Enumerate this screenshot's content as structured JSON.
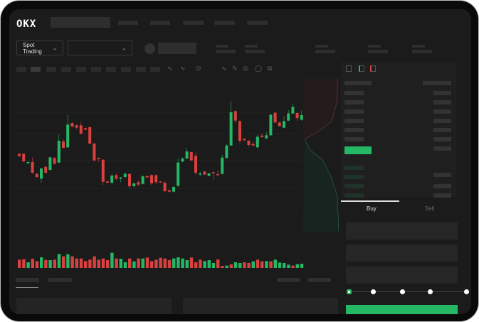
{
  "header": {
    "logo": "OKX"
  },
  "controls": {
    "market_type": "Spot Trading",
    "pair_select": ""
  },
  "order_form": {
    "tabs": [
      {
        "label": "Buy",
        "active": true
      },
      {
        "label": "Sell",
        "active": false
      }
    ],
    "leverage_slider": {
      "value_percent": 0,
      "stops": 5
    }
  },
  "colors": {
    "up": "#24b865",
    "down": "#d9413f",
    "background": "#1b1b1b"
  },
  "chart_data": {
    "type": "candlestick",
    "candles_ohlc": [
      [
        200,
        204,
        186,
        190
      ],
      [
        200,
        203,
        164,
        168
      ],
      [
        160,
        167,
        158,
        165
      ],
      [
        165,
        185,
        116,
        120
      ],
      [
        115,
        120,
        96,
        102
      ],
      [
        95,
        140,
        78,
        138
      ],
      [
        145,
        148,
        115,
        120
      ],
      [
        132,
        188,
        128,
        185
      ],
      [
        182,
        186,
        154,
        158
      ],
      [
        163,
        282,
        160,
        255
      ],
      [
        252,
        262,
        222,
        225
      ],
      [
        227,
        365,
        225,
        323
      ],
      [
        330,
        333,
        312,
        315
      ],
      [
        320,
        325,
        305,
        310
      ],
      [
        320,
        335,
        280,
        285
      ],
      [
        308,
        310,
        300,
        302
      ],
      [
        312,
        318,
        240,
        243
      ],
      [
        243,
        246,
        168,
        172
      ],
      [
        182,
        185,
        165,
        177
      ],
      [
        175,
        178,
        68,
        82
      ],
      [
        83,
        88,
        76,
        78
      ],
      [
        78,
        115,
        70,
        108
      ],
      [
        110,
        118,
        88,
        95
      ],
      [
        95,
        102,
        80,
        100
      ],
      [
        102,
        122,
        98,
        115
      ],
      [
        115,
        118,
        52,
        63
      ],
      [
        63,
        78,
        58,
        75
      ],
      [
        80,
        88,
        62,
        70
      ],
      [
        73,
        110,
        70,
        105
      ],
      [
        106,
        108,
        98,
        100
      ],
      [
        110,
        114,
        68,
        75
      ],
      [
        110,
        113,
        72,
        80
      ],
      [
        83,
        85,
        78,
        80
      ],
      [
        78,
        85,
        38,
        42
      ],
      [
        46,
        50,
        38,
        40
      ],
      [
        40,
        64,
        36,
        60
      ],
      [
        65,
        180,
        60,
        163
      ],
      [
        167,
        185,
        165,
        180
      ],
      [
        180,
        225,
        178,
        210
      ],
      [
        207,
        210,
        168,
        172
      ],
      [
        192,
        205,
        112,
        120
      ],
      [
        113,
        125,
        105,
        117
      ],
      [
        125,
        127,
        110,
        112
      ],
      [
        107,
        120,
        105,
        117
      ],
      [
        122,
        124,
        90,
        120
      ],
      [
        114,
        130,
        108,
        110
      ],
      [
        115,
        195,
        112,
        184
      ],
      [
        182,
        242,
        180,
        235
      ],
      [
        235,
        422,
        232,
        375
      ],
      [
        380,
        385,
        330,
        340
      ],
      [
        338,
        340,
        245,
        255
      ],
      [
        263,
        266,
        254,
        257
      ],
      [
        255,
        258,
        230,
        237
      ],
      [
        242,
        250,
        232,
        235
      ],
      [
        227,
        280,
        225,
        272
      ],
      [
        277,
        288,
        268,
        270
      ],
      [
        265,
        292,
        262,
        278
      ],
      [
        278,
        368,
        276,
        365
      ],
      [
        373,
        376,
        328,
        332
      ],
      [
        332,
        335,
        315,
        317
      ],
      [
        310,
        358,
        308,
        338
      ],
      [
        340,
        385,
        338,
        370
      ],
      [
        370,
        412,
        368,
        398
      ],
      [
        372,
        375,
        338,
        350
      ],
      [
        343,
        383,
        340,
        363
      ]
    ],
    "volume": [
      35,
      37,
      24,
      39,
      29,
      45,
      34,
      33,
      35,
      59,
      49,
      58,
      49,
      40,
      40,
      29,
      35,
      49,
      35,
      40,
      33,
      64,
      40,
      39,
      24,
      40,
      28,
      40,
      40,
      44,
      29,
      35,
      43,
      40,
      33,
      40,
      45,
      40,
      33,
      44,
      24,
      35,
      29,
      33,
      21,
      36,
      9,
      10,
      15,
      24,
      21,
      24,
      21,
      28,
      35,
      28,
      29,
      28,
      35,
      23,
      21,
      14,
      10,
      16,
      18
    ],
    "volume_up": [
      0,
      0,
      1,
      0,
      0,
      1,
      0,
      1,
      0,
      1,
      0,
      1,
      0,
      0,
      0,
      0,
      0,
      0,
      0,
      0,
      0,
      1,
      0,
      1,
      1,
      0,
      1,
      0,
      1,
      0,
      0,
      0,
      0,
      0,
      0,
      1,
      1,
      1,
      1,
      0,
      0,
      0,
      1,
      1,
      1,
      0,
      0,
      1,
      0,
      1,
      1,
      0,
      0,
      1,
      0,
      0,
      1,
      0,
      1,
      1,
      1,
      1,
      0,
      1,
      1
    ],
    "grid": true
  }
}
